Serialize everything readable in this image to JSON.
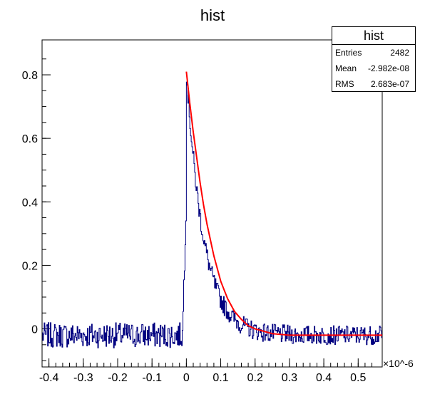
{
  "chart_data": {
    "type": "histogram",
    "title": "hist",
    "xlabel": "",
    "ylabel": "",
    "x_multiplier": "×10^-6",
    "xlim": [
      -0.42,
      0.57
    ],
    "ylim": [
      -0.12,
      0.91
    ],
    "x_ticks": [
      "-0.4",
      "-0.3",
      "-0.2",
      "-0.1",
      "0",
      "0.1",
      "0.2",
      "0.3",
      "0.4",
      "0.5"
    ],
    "y_ticks": [
      "0",
      "0.2",
      "0.4",
      "0.6",
      "0.8"
    ],
    "series": [
      {
        "kind": "histogram",
        "color": "#000080",
        "description_values": {
          "baseline_before_zero": -0.02,
          "peak_x": 0.0,
          "peak_y": 0.8,
          "tail_baseline": -0.02
        }
      },
      {
        "kind": "fit",
        "color": "#ff0000",
        "model_points": [
          [
            0.0,
            0.81
          ],
          [
            0.01,
            0.71
          ],
          [
            0.02,
            0.62
          ],
          [
            0.03,
            0.54
          ],
          [
            0.04,
            0.46
          ],
          [
            0.05,
            0.39
          ],
          [
            0.06,
            0.33
          ],
          [
            0.07,
            0.28
          ],
          [
            0.08,
            0.23
          ],
          [
            0.09,
            0.19
          ],
          [
            0.1,
            0.15
          ],
          [
            0.12,
            0.095
          ],
          [
            0.14,
            0.055
          ],
          [
            0.16,
            0.03
          ],
          [
            0.18,
            0.01
          ],
          [
            0.2,
            0.0
          ],
          [
            0.25,
            -0.015
          ],
          [
            0.3,
            -0.02
          ],
          [
            0.4,
            -0.02
          ],
          [
            0.57,
            -0.02
          ]
        ]
      }
    ],
    "stats": {
      "title": "hist",
      "entries_label": "Entries",
      "entries": "2482",
      "mean_label": "Mean",
      "mean": "-2.982e-08",
      "rms_label": "RMS",
      "rms": "2.683e-07"
    }
  }
}
